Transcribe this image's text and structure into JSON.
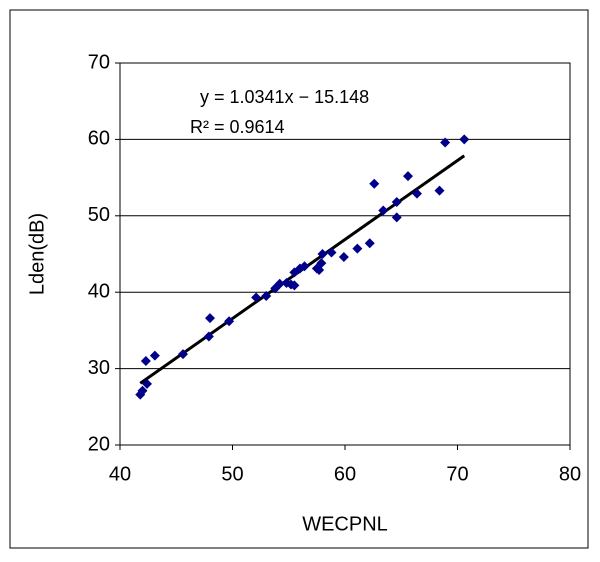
{
  "chart_data": {
    "type": "scatter",
    "xlabel": "WECPNL",
    "ylabel": "Lden(dB)",
    "annotations": [
      "y = 1.0341x − 15.148",
      "R² = 0.9614"
    ],
    "trendline": {
      "slope": 1.0341,
      "intercept": -15.148
    },
    "xlim": [
      40,
      80
    ],
    "xticks": [
      40,
      50,
      60,
      70,
      80
    ],
    "ylim": [
      20,
      70
    ],
    "yticks": [
      20,
      30,
      40,
      50,
      60,
      70
    ],
    "grid": true,
    "color": "#00008b",
    "x": [
      41.8,
      42.0,
      42.4,
      42.3,
      43.1,
      45.6,
      47.9,
      48.0,
      49.7,
      52.1,
      53.0,
      53.8,
      54.2,
      54.8,
      55.2,
      55.5,
      55.5,
      56.0,
      56.4,
      57.5,
      57.7,
      57.9,
      58.0,
      58.8,
      59.9,
      61.1,
      62.2,
      62.6,
      63.4,
      64.6,
      64.6,
      65.6,
      66.4,
      68.4,
      68.9,
      70.6
    ],
    "values": [
      26.6,
      27.1,
      28.0,
      31.0,
      31.7,
      31.9,
      34.2,
      36.6,
      36.2,
      39.3,
      39.5,
      40.5,
      41.1,
      41.2,
      41.0,
      40.9,
      42.6,
      43.1,
      43.4,
      43.1,
      42.9,
      43.8,
      45.0,
      45.2,
      44.6,
      45.7,
      46.4,
      54.2,
      50.7,
      49.8,
      51.8,
      55.2,
      52.9,
      53.3,
      59.6,
      60.0
    ]
  }
}
